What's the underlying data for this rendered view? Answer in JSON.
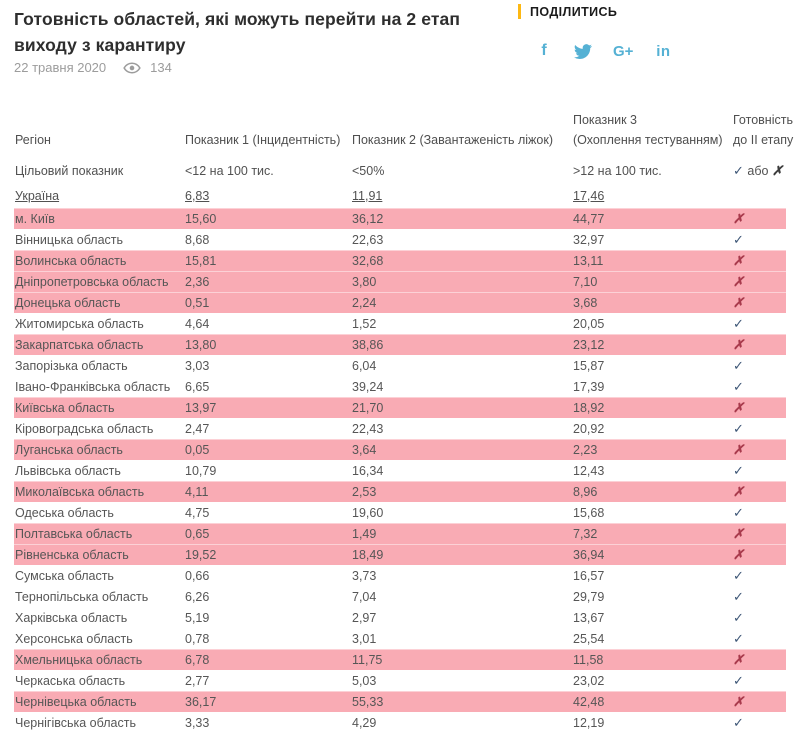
{
  "colors": {
    "highlight_pink": "#f9abb4",
    "check_mark": "#3e5777",
    "cross_mark": "#a83a4c",
    "accent_yellow": "#fdb813",
    "social_blue": "#55b1d4"
  },
  "header": {
    "title": "Готовність областей, які можуть перейти на 2 етап виходу з карантиру",
    "date": "22 травня 2020",
    "views": "134",
    "share": {
      "label": "ПОДІЛИТИСЬ",
      "icons": {
        "facebook_label": "f",
        "google_plus_label": "G+",
        "linkedin_label": "in"
      }
    }
  },
  "table": {
    "columns": [
      {
        "l1": "",
        "l2": "Регіон"
      },
      {
        "l1": "",
        "l2": "Показник 1 (Інцидентність)"
      },
      {
        "l1": "",
        "l2": "Показник 2 (Завантаженість ліжок)"
      },
      {
        "l1": "Показник 3",
        "l2": "(Охоплення тестуванням)"
      },
      {
        "l1": "Готовність",
        "l2": "до II етапу"
      }
    ],
    "marks": {
      "check": "✓",
      "cross": "✗",
      "or_word": "або"
    },
    "target_row": {
      "label": "Цільовий показник",
      "v1": "<12 на 100 тис.",
      "v2": "<50%",
      "v3": ">12 на 100 тис."
    },
    "ukraine_row": {
      "label": "Україна",
      "v1": "6,83",
      "v2": "11,91",
      "v3": "17,46"
    },
    "rows": [
      {
        "region": "м. Київ",
        "v1": "15,60",
        "v2": "36,12",
        "v3": "44,77",
        "ready": false
      },
      {
        "region": "Вінницька область",
        "v1": "8,68",
        "v2": "22,63",
        "v3": "32,97",
        "ready": true
      },
      {
        "region": "Волинська область",
        "v1": "15,81",
        "v2": "32,68",
        "v3": "13,11",
        "ready": false
      },
      {
        "region": "Дніпропетровська область",
        "v1": "2,36",
        "v2": "3,80",
        "v3": "7,10",
        "ready": false
      },
      {
        "region": "Донецька область",
        "v1": "0,51",
        "v2": "2,24",
        "v3": "3,68",
        "ready": false
      },
      {
        "region": "Житомирська область",
        "v1": "4,64",
        "v2": "1,52",
        "v3": "20,05",
        "ready": true
      },
      {
        "region": "Закарпатська область",
        "v1": "13,80",
        "v2": "38,86",
        "v3": "23,12",
        "ready": false
      },
      {
        "region": "Запорізька область",
        "v1": "3,03",
        "v2": "6,04",
        "v3": "15,87",
        "ready": true
      },
      {
        "region": "Івано-Франківська область",
        "v1": "6,65",
        "v2": "39,24",
        "v3": "17,39",
        "ready": true
      },
      {
        "region": "Київська область",
        "v1": "13,97",
        "v2": "21,70",
        "v3": "18,92",
        "ready": false
      },
      {
        "region": "Кіровоградська область",
        "v1": "2,47",
        "v2": "22,43",
        "v3": "20,92",
        "ready": true
      },
      {
        "region": "Луганська область",
        "v1": "0,05",
        "v2": "3,64",
        "v3": "2,23",
        "ready": false
      },
      {
        "region": "Львівська область",
        "v1": "10,79",
        "v2": "16,34",
        "v3": "12,43",
        "ready": true
      },
      {
        "region": "Миколаївська область",
        "v1": "4,11",
        "v2": "2,53",
        "v3": "8,96",
        "ready": false
      },
      {
        "region": "Одеська область",
        "v1": "4,75",
        "v2": "19,60",
        "v3": "15,68",
        "ready": true
      },
      {
        "region": "Полтавська область",
        "v1": "0,65",
        "v2": "1,49",
        "v3": "7,32",
        "ready": false
      },
      {
        "region": "Рівненська область",
        "v1": "19,52",
        "v2": "18,49",
        "v3": "36,94",
        "ready": false
      },
      {
        "region": "Сумська область",
        "v1": "0,66",
        "v2": "3,73",
        "v3": "16,57",
        "ready": true
      },
      {
        "region": "Тернопільська область",
        "v1": "6,26",
        "v2": "7,04",
        "v3": "29,79",
        "ready": true
      },
      {
        "region": "Харківська область",
        "v1": "5,19",
        "v2": "2,97",
        "v3": "13,67",
        "ready": true
      },
      {
        "region": "Херсонська область",
        "v1": "0,78",
        "v2": "3,01",
        "v3": "25,54",
        "ready": true
      },
      {
        "region": "Хмельницька область",
        "v1": "6,78",
        "v2": "11,75",
        "v3": "11,58",
        "ready": false
      },
      {
        "region": "Черкаська область",
        "v1": "2,77",
        "v2": "5,03",
        "v3": "23,02",
        "ready": true
      },
      {
        "region": "Чернівецька область",
        "v1": "36,17",
        "v2": "55,33",
        "v3": "42,48",
        "ready": false
      },
      {
        "region": "Чернігівська область",
        "v1": "3,33",
        "v2": "4,29",
        "v3": "12,19",
        "ready": true
      }
    ]
  }
}
